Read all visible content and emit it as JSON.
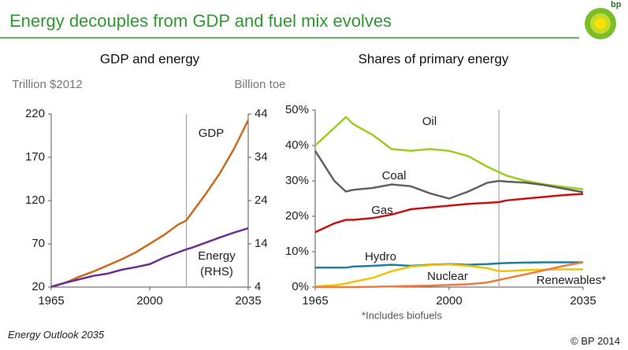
{
  "title": "Energy decouples from GDP and fuel mix evolves",
  "logo": "bp",
  "footer": {
    "left": "Energy Outlook 2035",
    "right": "© BP 2014"
  },
  "chart_data": [
    {
      "type": "line",
      "title": "GDP and energy",
      "y_label": "Trillion $2012",
      "y2_label": "Billion toe",
      "x": [
        1965,
        1970,
        1975,
        1980,
        1985,
        1990,
        1995,
        2000,
        2005,
        2010,
        2013,
        2015,
        2020,
        2025,
        2030,
        2035
      ],
      "xlim": [
        1965,
        2035
      ],
      "xticks": [
        1965,
        2000,
        2035
      ],
      "ylim": [
        20,
        220
      ],
      "yticks": [
        20,
        70,
        120,
        170,
        220
      ],
      "y2lim": [
        4,
        44
      ],
      "y2ticks": [
        4,
        14,
        24,
        34,
        44
      ],
      "vline_x": 2013,
      "series": [
        {
          "name": "GDP",
          "color": "#cc6a1c",
          "values": [
            20,
            25,
            32,
            38,
            45,
            52,
            60,
            70,
            80,
            92,
            97,
            106,
            128,
            152,
            180,
            213
          ]
        },
        {
          "name": "Energy (RHS)",
          "color": "#6b2f91",
          "axis": "y2",
          "values": [
            4.1,
            5,
            5.8,
            6.6,
            7.1,
            8,
            8.6,
            9.3,
            10.8,
            12,
            12.7,
            13.1,
            14.3,
            15.5,
            16.6,
            17.6
          ]
        }
      ]
    },
    {
      "type": "line",
      "title": "Shares of primary energy",
      "note": "*Includes biofuels",
      "x": [
        1965,
        1970,
        1973,
        1975,
        1980,
        1985,
        1990,
        1995,
        2000,
        2005,
        2010,
        2013,
        2015,
        2020,
        2025,
        2030,
        2035
      ],
      "xlim": [
        1965,
        2035
      ],
      "xticks": [
        1965,
        2000,
        2035
      ],
      "ylim": [
        0,
        50
      ],
      "yticks": [
        {
          "value": 0,
          "label": "0%"
        },
        {
          "value": 10,
          "label": "10%"
        },
        {
          "value": 20,
          "label": "20%"
        },
        {
          "value": 30,
          "label": "30%"
        },
        {
          "value": 40,
          "label": "40%"
        },
        {
          "value": 50,
          "label": "50%"
        }
      ],
      "vline_x": 2013,
      "series": [
        {
          "name": "Oil",
          "color": "#9acd1e",
          "values": [
            40,
            45,
            48,
            46,
            43,
            39,
            38.5,
            39,
            38.5,
            37,
            34,
            32.5,
            31.5,
            30,
            29,
            28.3,
            27.6
          ]
        },
        {
          "name": "Coal",
          "color": "#606060",
          "values": [
            38.5,
            30,
            27,
            27.5,
            28,
            29,
            28.5,
            26.5,
            25,
            27,
            29.5,
            30,
            29.8,
            29.5,
            28.8,
            27.8,
            26.8
          ]
        },
        {
          "name": "Gas",
          "color": "#cc1010",
          "values": [
            15.5,
            18,
            19,
            19,
            19.5,
            20.5,
            22,
            22.5,
            23,
            23.5,
            23.8,
            24,
            24.5,
            25,
            25.5,
            26,
            26.3
          ]
        },
        {
          "name": "Hydro",
          "color": "#1f7fa0",
          "values": [
            5.5,
            5.5,
            5.5,
            5.8,
            6,
            6.3,
            6,
            6.3,
            6.5,
            6.3,
            6.5,
            6.7,
            6.8,
            6.9,
            7,
            7,
            7
          ]
        },
        {
          "name": "Nuclear",
          "color": "#f0c400",
          "values": [
            0.2,
            0.5,
            1,
            1.5,
            2.6,
            4.5,
            5.8,
            6.2,
            6.4,
            6,
            5.3,
            4.5,
            4.5,
            4.8,
            4.9,
            5,
            5
          ]
        },
        {
          "name": "Renewables*",
          "color": "#f07c3c",
          "values": [
            0,
            0,
            0,
            0,
            0.1,
            0.2,
            0.3,
            0.4,
            0.6,
            0.8,
            1.3,
            2,
            2.5,
            3.6,
            4.8,
            6,
            7
          ]
        }
      ]
    }
  ]
}
